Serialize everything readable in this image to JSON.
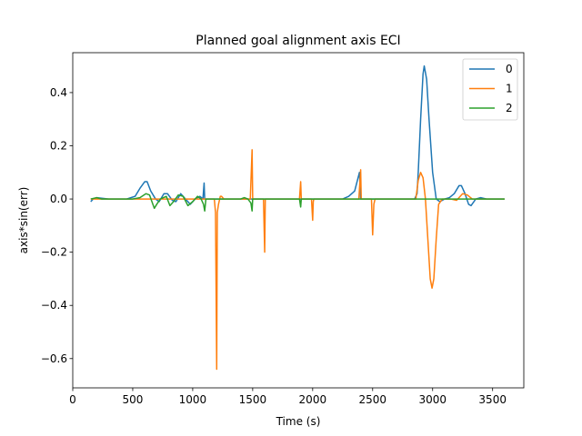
{
  "chart_data": {
    "type": "line",
    "title": "Planned goal alignment axis ECI",
    "xlabel": "Time (s)",
    "ylabel": "axis*sin(err)",
    "xlim": [
      0,
      3760
    ],
    "ylim": [
      -0.71,
      0.55
    ],
    "xticks": [
      0,
      500,
      1000,
      1500,
      2000,
      2500,
      3000,
      3500
    ],
    "yticks": [
      -0.6,
      -0.4,
      -0.2,
      0.0,
      0.2,
      0.4
    ],
    "ytick_labels": [
      "−0.6",
      "−0.4",
      "−0.2",
      "0.0",
      "0.2",
      "0.4"
    ],
    "grid": false,
    "legend_position": "top-right",
    "series": [
      {
        "name": "0",
        "color": "#1f77b4",
        "points": [
          [
            150,
            -0.01
          ],
          [
            170,
            0.0
          ],
          [
            200,
            0.005
          ],
          [
            300,
            0.0
          ],
          [
            450,
            0.0
          ],
          [
            520,
            0.01
          ],
          [
            560,
            0.04
          ],
          [
            600,
            0.065
          ],
          [
            620,
            0.065
          ],
          [
            650,
            0.03
          ],
          [
            690,
            0.0
          ],
          [
            720,
            -0.01
          ],
          [
            760,
            0.02
          ],
          [
            790,
            0.02
          ],
          [
            830,
            -0.005
          ],
          [
            860,
            -0.01
          ],
          [
            900,
            0.02
          ],
          [
            940,
            0.0
          ],
          [
            980,
            -0.02
          ],
          [
            1020,
            0.0
          ],
          [
            1060,
            0.01
          ],
          [
            1085,
            0.0
          ],
          [
            1095,
            0.06
          ],
          [
            1100,
            0.0
          ],
          [
            1110,
            0.0
          ],
          [
            1300,
            0.0
          ],
          [
            1500,
            0.0
          ],
          [
            2000,
            0.0
          ],
          [
            2250,
            0.0
          ],
          [
            2300,
            0.01
          ],
          [
            2350,
            0.03
          ],
          [
            2390,
            0.1
          ],
          [
            2400,
            0.0
          ],
          [
            2500,
            0.0
          ],
          [
            2850,
            0.0
          ],
          [
            2870,
            0.02
          ],
          [
            2880,
            0.1
          ],
          [
            2900,
            0.3
          ],
          [
            2920,
            0.47
          ],
          [
            2930,
            0.5
          ],
          [
            2950,
            0.45
          ],
          [
            2970,
            0.3
          ],
          [
            3000,
            0.1
          ],
          [
            3030,
            0.0
          ],
          [
            3060,
            -0.01
          ],
          [
            3100,
            0.0
          ],
          [
            3140,
            0.005
          ],
          [
            3180,
            0.02
          ],
          [
            3220,
            0.05
          ],
          [
            3240,
            0.05
          ],
          [
            3270,
            0.02
          ],
          [
            3300,
            -0.02
          ],
          [
            3320,
            -0.025
          ],
          [
            3360,
            0.0
          ],
          [
            3400,
            0.005
          ],
          [
            3450,
            0.0
          ],
          [
            3600,
            0.0
          ]
        ]
      },
      {
        "name": "1",
        "color": "#ff7f0e",
        "points": [
          [
            150,
            0.0
          ],
          [
            200,
            0.0
          ],
          [
            1100,
            0.0
          ],
          [
            1180,
            0.0
          ],
          [
            1190,
            -0.05
          ],
          [
            1200,
            -0.64
          ],
          [
            1205,
            -0.05
          ],
          [
            1215,
            -0.02
          ],
          [
            1230,
            0.01
          ],
          [
            1240,
            0.01
          ],
          [
            1260,
            0.0
          ],
          [
            1480,
            0.0
          ],
          [
            1495,
            0.185
          ],
          [
            1500,
            0.0
          ],
          [
            1590,
            0.0
          ],
          [
            1600,
            -0.2
          ],
          [
            1605,
            0.0
          ],
          [
            1890,
            0.0
          ],
          [
            1900,
            0.065
          ],
          [
            1905,
            0.0
          ],
          [
            1990,
            0.0
          ],
          [
            2000,
            -0.08
          ],
          [
            2005,
            -0.01
          ],
          [
            2010,
            0.0
          ],
          [
            2385,
            0.0
          ],
          [
            2400,
            0.11
          ],
          [
            2405,
            0.0
          ],
          [
            2490,
            0.0
          ],
          [
            2500,
            -0.135
          ],
          [
            2510,
            -0.02
          ],
          [
            2520,
            0.0
          ],
          [
            2860,
            0.0
          ],
          [
            2880,
            0.07
          ],
          [
            2900,
            0.1
          ],
          [
            2920,
            0.08
          ],
          [
            2940,
            0.0
          ],
          [
            2960,
            -0.15
          ],
          [
            2980,
            -0.3
          ],
          [
            2995,
            -0.335
          ],
          [
            3010,
            -0.3
          ],
          [
            3030,
            -0.15
          ],
          [
            3050,
            -0.02
          ],
          [
            3080,
            0.0
          ],
          [
            3150,
            0.0
          ],
          [
            3200,
            -0.005
          ],
          [
            3250,
            0.02
          ],
          [
            3290,
            0.015
          ],
          [
            3330,
            0.0
          ],
          [
            3600,
            0.0
          ]
        ]
      },
      {
        "name": "2",
        "color": "#2ca02c",
        "points": [
          [
            150,
            0.0
          ],
          [
            200,
            0.005
          ],
          [
            240,
            0.0
          ],
          [
            500,
            0.0
          ],
          [
            560,
            0.005
          ],
          [
            610,
            0.02
          ],
          [
            640,
            0.015
          ],
          [
            680,
            -0.035
          ],
          [
            700,
            -0.02
          ],
          [
            730,
            0.0
          ],
          [
            780,
            0.01
          ],
          [
            810,
            -0.025
          ],
          [
            840,
            -0.01
          ],
          [
            880,
            0.015
          ],
          [
            920,
            0.01
          ],
          [
            960,
            -0.025
          ],
          [
            1000,
            -0.01
          ],
          [
            1040,
            0.01
          ],
          [
            1070,
            0.0
          ],
          [
            1090,
            -0.02
          ],
          [
            1100,
            -0.045
          ],
          [
            1110,
            0.0
          ],
          [
            1400,
            0.0
          ],
          [
            1430,
            0.005
          ],
          [
            1460,
            0.0
          ],
          [
            1485,
            -0.015
          ],
          [
            1495,
            -0.045
          ],
          [
            1500,
            0.0
          ],
          [
            1890,
            0.0
          ],
          [
            1900,
            -0.03
          ],
          [
            1905,
            0.0
          ],
          [
            2300,
            0.0
          ],
          [
            2400,
            0.0
          ],
          [
            2500,
            0.0
          ],
          [
            3600,
            0.0
          ]
        ]
      }
    ]
  }
}
